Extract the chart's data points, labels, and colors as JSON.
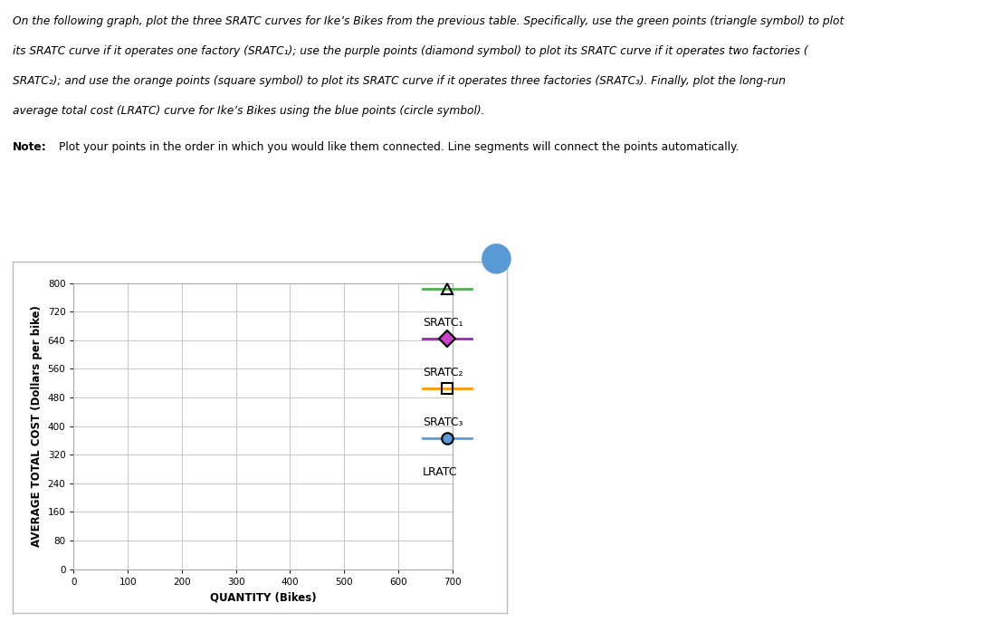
{
  "xlabel": "QUANTITY (Bikes)",
  "ylabel": "AVERAGE TOTAL COST (Dollars per bike)",
  "xlim": [
    0,
    700
  ],
  "ylim": [
    0,
    800
  ],
  "xticks": [
    0,
    100,
    200,
    300,
    400,
    500,
    600,
    700
  ],
  "yticks": [
    0,
    80,
    160,
    240,
    320,
    400,
    480,
    560,
    640,
    720,
    800
  ],
  "sratc1_color": "#4CAF50",
  "sratc2_color": "#9C27B0",
  "sratc3_color": "#FF9800",
  "lratc_color": "#5B9BD5",
  "bg_color": "#ffffff",
  "grid_color": "#c8c8c8",
  "spine_color": "#aaaaaa",
  "question_mark_color": "#5B9BD5",
  "text_line1": "On the following graph, plot the three SRATC curves for Ike’s Bikes from the previous table. Specifically, use the green points (triangle symbol) to plot",
  "text_line2": "its SRATC curve if it operates one factory (SRATC₁); use the purple points (diamond symbol) to plot its SRATC curve if it operates two factories (",
  "text_line3": "SRATC₂); and use the orange points (square symbol) to plot its SRATC curve if it operates three factories (SRATC₃). Finally, plot the long-run",
  "text_line4": "average total cost (LRATC) curve for Ike’s Bikes using the blue points (circle symbol).",
  "note_body": "Plot your points in the order in which you would like them connected. Line segments will connect the points automatically.",
  "legend_items": [
    {
      "label": "SRATC₁",
      "color": "#4CAF50",
      "marker": "^",
      "mfc": "none",
      "mec": "#000000"
    },
    {
      "label": "SRATC₂",
      "color": "#9C27B0",
      "marker": "D",
      "mfc": "#CC44CC",
      "mec": "#000000"
    },
    {
      "label": "SRATC₃",
      "color": "#FF9800",
      "marker": "s",
      "mfc": "none",
      "mec": "#000000"
    },
    {
      "label": "LRATC",
      "color": "#5B9BD5",
      "marker": "o",
      "mfc": "#5B9BD5",
      "mec": "#000000"
    }
  ]
}
